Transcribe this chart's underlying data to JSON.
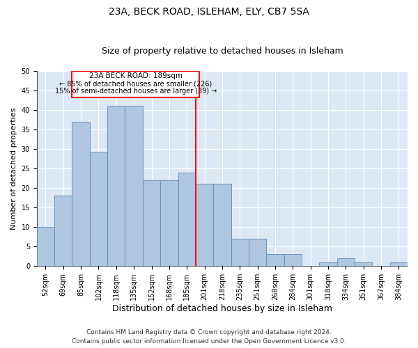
{
  "title1": "23A, BECK ROAD, ISLEHAM, ELY, CB7 5SA",
  "title2": "Size of property relative to detached houses in Isleham",
  "xlabel": "Distribution of detached houses by size in Isleham",
  "ylabel": "Number of detached properties",
  "categories": [
    "52sqm",
    "69sqm",
    "85sqm",
    "102sqm",
    "118sqm",
    "135sqm",
    "152sqm",
    "168sqm",
    "185sqm",
    "201sqm",
    "218sqm",
    "235sqm",
    "251sqm",
    "268sqm",
    "284sqm",
    "301sqm",
    "318sqm",
    "334sqm",
    "351sqm",
    "367sqm",
    "384sqm"
  ],
  "values": [
    10,
    18,
    37,
    29,
    41,
    41,
    22,
    22,
    24,
    21,
    21,
    7,
    7,
    3,
    3,
    0,
    1,
    2,
    1,
    0,
    1
  ],
  "bar_color": "#aec6e0",
  "bar_edge_color": "#5b8db8",
  "reference_line_index": 8.5,
  "reference_line_label": "23A BECK ROAD: 189sqm",
  "annotation_line1": "← 85% of detached houses are smaller (226)",
  "annotation_line2": "15% of semi-detached houses are larger (39) →",
  "ylim": [
    0,
    50
  ],
  "yticks": [
    0,
    5,
    10,
    15,
    20,
    25,
    30,
    35,
    40,
    45,
    50
  ],
  "background_color": "#dce8f5",
  "footer_line1": "Contains HM Land Registry data © Crown copyright and database right 2024.",
  "footer_line2": "Contains public sector information licensed under the Open Government Licence v3.0.",
  "title1_fontsize": 10,
  "title2_fontsize": 9,
  "ylabel_fontsize": 8,
  "xlabel_fontsize": 9,
  "tick_fontsize": 7,
  "footer_fontsize": 6.5,
  "annot_fontsize": 7.5
}
